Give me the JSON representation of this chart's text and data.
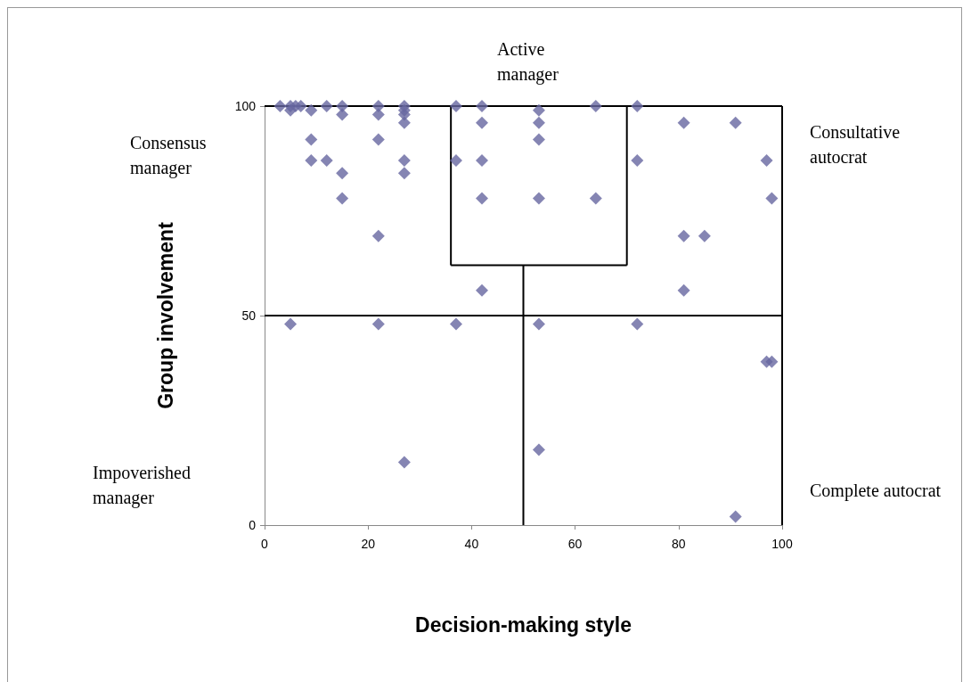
{
  "chart_data": {
    "type": "scatter",
    "xlabel": "Decision-making style",
    "ylabel": "Group involvement",
    "annotations": [
      "Active manager",
      "Consensus manager",
      "Consultative autocrat",
      "Impoverished manager",
      "Complete autocrat"
    ],
    "xlim": [
      0,
      100
    ],
    "xticks": [
      0,
      20,
      40,
      60,
      80,
      100
    ],
    "ylim": [
      0,
      100
    ],
    "yticks": [
      0,
      50,
      100
    ],
    "grid": false,
    "series": [
      {
        "marker": "diamond",
        "color": "#6667a0",
        "x": [
          3,
          5,
          5,
          6,
          7,
          9,
          9,
          9,
          12,
          12,
          15,
          15,
          15,
          15,
          22,
          22,
          22,
          22,
          27,
          27,
          27,
          27,
          27,
          27,
          37,
          37,
          42,
          42,
          42,
          42,
          42,
          53,
          53,
          53,
          53,
          64,
          64,
          72,
          72,
          81,
          91,
          97,
          98,
          81,
          85,
          81,
          5,
          22,
          37,
          53,
          72,
          97,
          98,
          27,
          53,
          91
        ],
        "values": [
          100,
          99,
          100,
          100,
          100,
          99,
          92,
          87,
          100,
          87,
          100,
          98,
          84,
          78,
          100,
          98,
          92,
          69,
          100,
          99,
          98,
          96,
          87,
          84,
          100,
          87,
          100,
          96,
          87,
          78,
          56,
          99,
          96,
          92,
          78,
          100,
          78,
          100,
          87,
          96,
          96,
          87,
          78,
          69,
          69,
          56,
          48,
          48,
          48,
          48,
          48,
          39,
          39,
          15,
          18,
          2
        ]
      },
      {
        "type": "line",
        "marker": "none",
        "color": "#000000",
        "x": [
          0,
          100
        ],
        "values": [
          100,
          100
        ]
      },
      {
        "type": "line",
        "marker": "none",
        "color": "#000000",
        "x": [
          100,
          100
        ],
        "values": [
          100,
          0
        ]
      },
      {
        "type": "line",
        "marker": "none",
        "color": "#000000",
        "x": [
          0,
          100
        ],
        "values": [
          50,
          50
        ]
      },
      {
        "type": "line",
        "marker": "none",
        "color": "#000000",
        "x": [
          50,
          50
        ],
        "values": [
          0,
          62
        ]
      },
      {
        "type": "line",
        "marker": "none",
        "color": "#000000",
        "x": [
          36,
          36
        ],
        "values": [
          100,
          62
        ]
      },
      {
        "type": "line",
        "marker": "none",
        "color": "#000000",
        "x": [
          36,
          70
        ],
        "values": [
          62,
          62
        ]
      },
      {
        "type": "line",
        "marker": "none",
        "color": "#000000",
        "x": [
          70,
          70
        ],
        "values": [
          62,
          100
        ]
      }
    ]
  }
}
